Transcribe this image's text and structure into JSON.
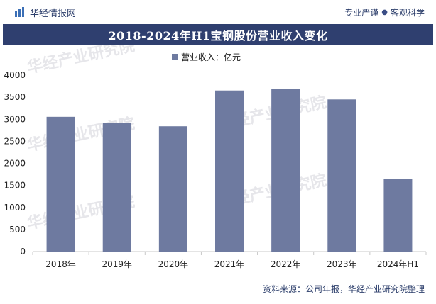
{
  "header": {
    "brand_name": "华经情报网",
    "tagline_left": "专业严谨",
    "tagline_sep": "●",
    "tagline_right": "客观科学"
  },
  "title": "2018-2024年H1宝钢股份营业收入变化",
  "watermark": "华经产业研究院",
  "source": "资料来源：公司年报，华经产业研究院整理",
  "colors": {
    "bar": "#6e7aa0",
    "title_bg": "#2f3f6f",
    "axis": "#c8c8c8",
    "text": "#222222"
  },
  "chart_data": {
    "type": "bar",
    "categories": [
      "2018年",
      "2019年",
      "2020年",
      "2021年",
      "2022年",
      "2023年",
      "2024年H1"
    ],
    "series": [
      {
        "name": "营业收入：亿元",
        "values": [
          3055,
          2918,
          2840,
          3651,
          3690,
          3449,
          1650
        ]
      }
    ],
    "ylim": [
      0,
      4000
    ],
    "yticks": [
      "0",
      "500",
      "1000",
      "1500",
      "2000",
      "2500",
      "3000",
      "3500",
      "4000"
    ],
    "grid": false,
    "legend": "top-center",
    "xlabel": "",
    "ylabel": ""
  }
}
